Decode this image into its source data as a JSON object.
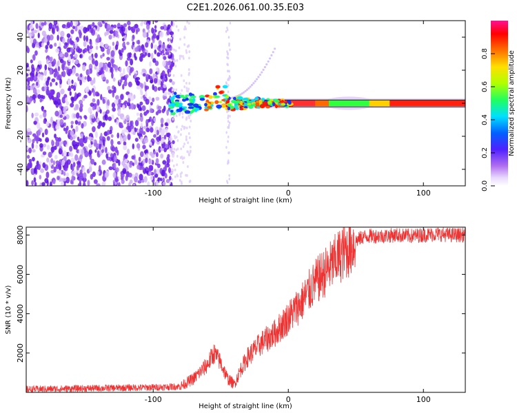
{
  "title": "C2E1.2026.061.00.35.E03",
  "chart_data": [
    {
      "type": "heatmap",
      "title": "C2E1.2026.061.00.35.E03",
      "xlabel": "Height of straight line (km)",
      "ylabel": "Frequency (Hz)",
      "xlim": [
        -194,
        131
      ],
      "ylim": [
        -50,
        50
      ],
      "xticks": [
        -100,
        0,
        100
      ],
      "yticks": [
        -40,
        -20,
        0,
        20,
        40
      ],
      "colorbar": {
        "label": "Normalized spectral amplitude",
        "range": [
          0,
          1
        ],
        "ticks": [
          0.0,
          0.2,
          0.4,
          0.6,
          0.8
        ],
        "colormap": [
          "#ffffff",
          "#e0c8ff",
          "#9b3cf0",
          "#3010ff",
          "#00e0ff",
          "#20ff40",
          "#ffff00",
          "#ff8000",
          "#ff0000",
          "#ff10a0"
        ]
      },
      "description_points": {
        "noise_region_x": [
          -194,
          -88
        ],
        "carrier_frequency_hz": 0,
        "carrier_onset_x": -88,
        "strong_carrier_x": [
          -40,
          131
        ]
      }
    },
    {
      "type": "line",
      "xlabel": "Height of straight line (km)",
      "ylabel": "SNR (10 * v/v)",
      "xlim": [
        -194,
        131
      ],
      "ylim": [
        0,
        8400
      ],
      "xticks": [
        -100,
        0,
        100
      ],
      "yticks": [
        2000,
        4000,
        6000,
        8000
      ],
      "series": [
        {
          "name": "SNR",
          "color": "#ee3333",
          "x": [
            -194,
            -150,
            -100,
            -80,
            -70,
            -60,
            -55,
            -50,
            -45,
            -40,
            -35,
            -30,
            -20,
            -10,
            0,
            10,
            20,
            30,
            40,
            45,
            50,
            55,
            60,
            70,
            80,
            90,
            100,
            110,
            120,
            131
          ],
          "values": [
            150,
            200,
            250,
            300,
            700,
            1400,
            2000,
            1500,
            700,
            400,
            1200,
            1800,
            2500,
            3000,
            3800,
            4600,
            5600,
            6300,
            7100,
            7300,
            7700,
            7900,
            7950,
            7950,
            8000,
            7950,
            8000,
            8050,
            8000,
            8000
          ]
        }
      ]
    }
  ]
}
